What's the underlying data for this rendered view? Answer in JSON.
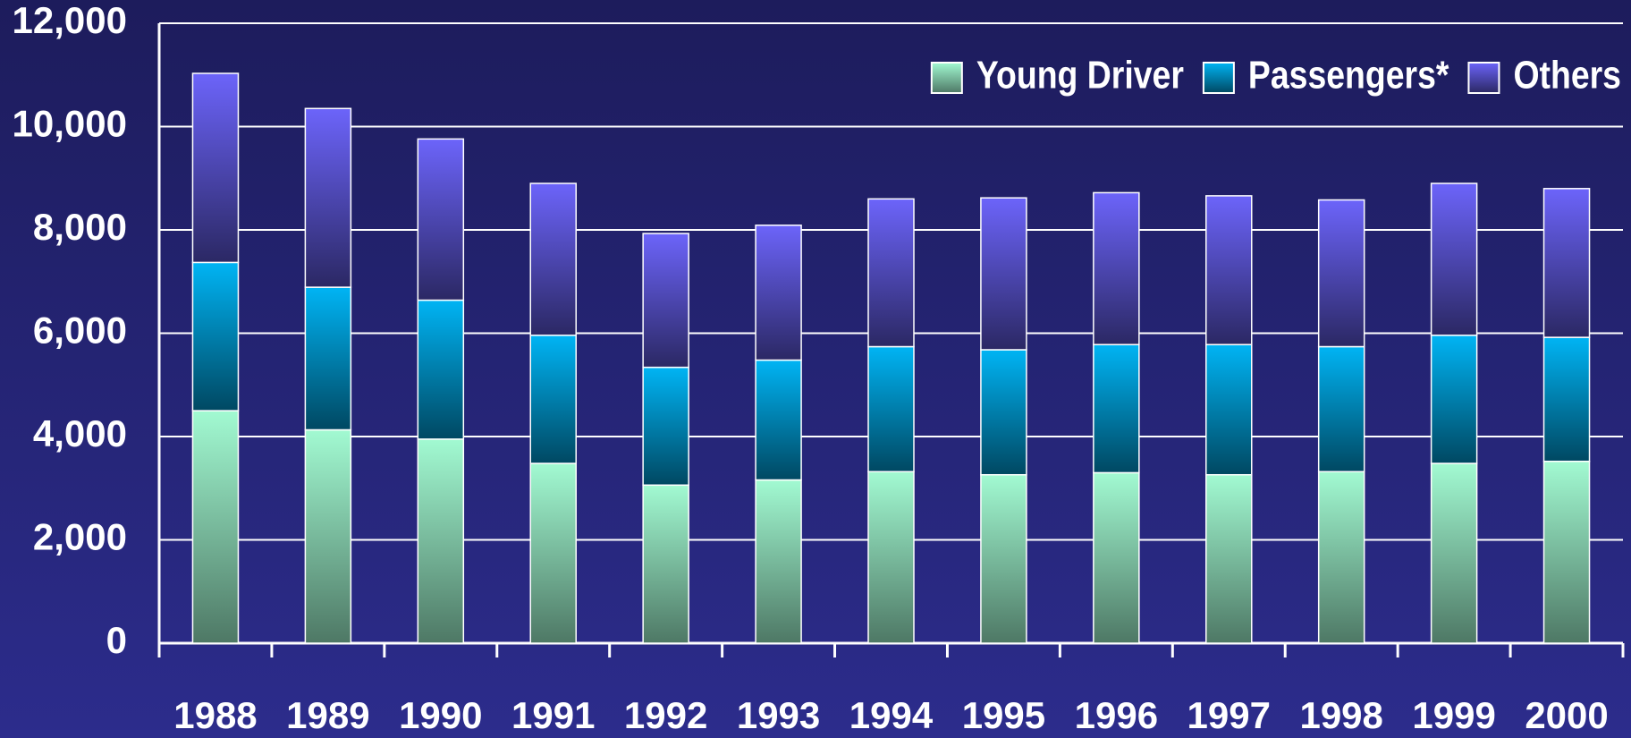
{
  "chart_data": {
    "type": "stacked_bar",
    "categories": [
      "1988",
      "1989",
      "1990",
      "1991",
      "1992",
      "1993",
      "1994",
      "1995",
      "1996",
      "1997",
      "1998",
      "1999",
      "2000"
    ],
    "series": [
      {
        "name": "Young Driver",
        "color": "#a2fad2",
        "values": [
          4500,
          4130,
          3950,
          3480,
          3060,
          3160,
          3320,
          3260,
          3300,
          3260,
          3320,
          3480,
          3520
        ]
      },
      {
        "name": "Passengers*",
        "color": "#00b4f4",
        "values": [
          2870,
          2760,
          2690,
          2480,
          2280,
          2320,
          2420,
          2420,
          2480,
          2520,
          2420,
          2480,
          2400
        ]
      },
      {
        "name": "Others",
        "color": "#6c64fa",
        "values": [
          3660,
          3460,
          3120,
          2940,
          2590,
          2610,
          2860,
          2940,
          2940,
          2880,
          2840,
          2940,
          2880
        ]
      }
    ],
    "ylim": [
      0,
      12000
    ],
    "yticks": [
      0,
      {
        "value": 2000,
        "label": "2,000"
      },
      {
        "value": 4000,
        "label": "4,000"
      },
      {
        "value": 6000,
        "label": "6,000"
      },
      {
        "value": 8000,
        "label": "8,000"
      },
      {
        "value": 10000,
        "label": "10,000"
      },
      {
        "value": 12000,
        "label": "12,000"
      }
    ],
    "grid": true,
    "legend": "top-right"
  }
}
